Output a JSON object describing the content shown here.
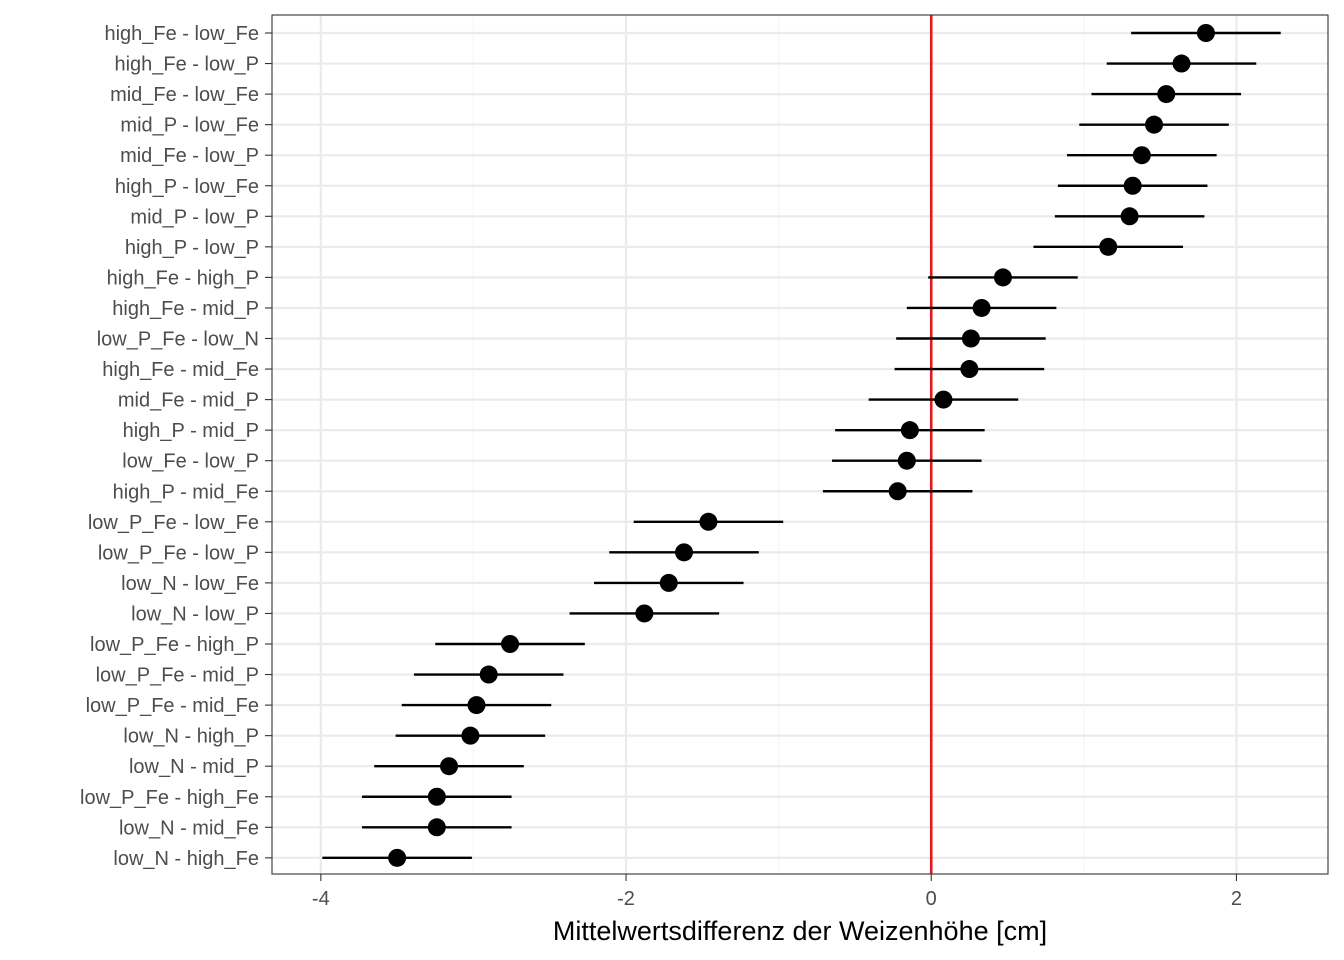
{
  "chart_data": {
    "type": "scatter",
    "subtype": "forest-plot-with-error-bars",
    "title": "",
    "xlabel": "Mittelwertsdifferenz der Weizenhöhe [cm]",
    "ylabel": "",
    "xlim": [
      -4.32,
      2.6
    ],
    "x_ticks": [
      -4,
      -2,
      0,
      2
    ],
    "x_tick_labels": [
      "-4",
      "-2",
      "0",
      "2"
    ],
    "grid": true,
    "reference_line": {
      "x": 0,
      "color": "#e31a1c"
    },
    "colors": {
      "point": "#000000",
      "panel_border": "#333333",
      "grid_major": "#ebebeb",
      "grid_minor": "#f5f5f5",
      "tick_label": "#4d4d4d"
    },
    "comparisons": [
      {
        "label": "high_Fe - low_Fe",
        "estimate": 1.8,
        "lower": 1.31,
        "upper": 2.29
      },
      {
        "label": "high_Fe - low_P",
        "estimate": 1.64,
        "lower": 1.15,
        "upper": 2.13
      },
      {
        "label": "mid_Fe - low_Fe",
        "estimate": 1.54,
        "lower": 1.05,
        "upper": 2.03
      },
      {
        "label": "mid_P - low_Fe",
        "estimate": 1.46,
        "lower": 0.97,
        "upper": 1.95
      },
      {
        "label": "mid_Fe - low_P",
        "estimate": 1.38,
        "lower": 0.89,
        "upper": 1.87
      },
      {
        "label": "high_P - low_Fe",
        "estimate": 1.32,
        "lower": 0.83,
        "upper": 1.81
      },
      {
        "label": "mid_P - low_P",
        "estimate": 1.3,
        "lower": 0.81,
        "upper": 1.79
      },
      {
        "label": "high_P - low_P",
        "estimate": 1.16,
        "lower": 0.67,
        "upper": 1.65
      },
      {
        "label": "high_Fe - high_P",
        "estimate": 0.47,
        "lower": -0.02,
        "upper": 0.96
      },
      {
        "label": "high_Fe - mid_P",
        "estimate": 0.33,
        "lower": -0.16,
        "upper": 0.82
      },
      {
        "label": "low_P_Fe - low_N",
        "estimate": 0.26,
        "lower": -0.23,
        "upper": 0.75
      },
      {
        "label": "high_Fe - mid_Fe",
        "estimate": 0.25,
        "lower": -0.24,
        "upper": 0.74
      },
      {
        "label": "mid_Fe - mid_P",
        "estimate": 0.08,
        "lower": -0.41,
        "upper": 0.57
      },
      {
        "label": "high_P - mid_P",
        "estimate": -0.14,
        "lower": -0.63,
        "upper": 0.35
      },
      {
        "label": "low_Fe - low_P",
        "estimate": -0.16,
        "lower": -0.65,
        "upper": 0.33
      },
      {
        "label": "high_P - mid_Fe",
        "estimate": -0.22,
        "lower": -0.71,
        "upper": 0.27
      },
      {
        "label": "low_P_Fe - low_Fe",
        "estimate": -1.46,
        "lower": -1.95,
        "upper": -0.97
      },
      {
        "label": "low_P_Fe - low_P",
        "estimate": -1.62,
        "lower": -2.11,
        "upper": -1.13
      },
      {
        "label": "low_N - low_Fe",
        "estimate": -1.72,
        "lower": -2.21,
        "upper": -1.23
      },
      {
        "label": "low_N - low_P",
        "estimate": -1.88,
        "lower": -2.37,
        "upper": -1.39
      },
      {
        "label": "low_P_Fe - high_P",
        "estimate": -2.76,
        "lower": -3.25,
        "upper": -2.27
      },
      {
        "label": "low_P_Fe - mid_P",
        "estimate": -2.9,
        "lower": -3.39,
        "upper": -2.41
      },
      {
        "label": "low_P_Fe - mid_Fe",
        "estimate": -2.98,
        "lower": -3.47,
        "upper": -2.49
      },
      {
        "label": "low_N - high_P",
        "estimate": -3.02,
        "lower": -3.51,
        "upper": -2.53
      },
      {
        "label": "low_N - mid_P",
        "estimate": -3.16,
        "lower": -3.65,
        "upper": -2.67
      },
      {
        "label": "low_P_Fe - high_Fe",
        "estimate": -3.24,
        "lower": -3.73,
        "upper": -2.75
      },
      {
        "label": "low_N - mid_Fe",
        "estimate": -3.24,
        "lower": -3.73,
        "upper": -2.75
      },
      {
        "label": "low_N - high_Fe",
        "estimate": -3.5,
        "lower": -3.99,
        "upper": -3.01
      }
    ]
  }
}
